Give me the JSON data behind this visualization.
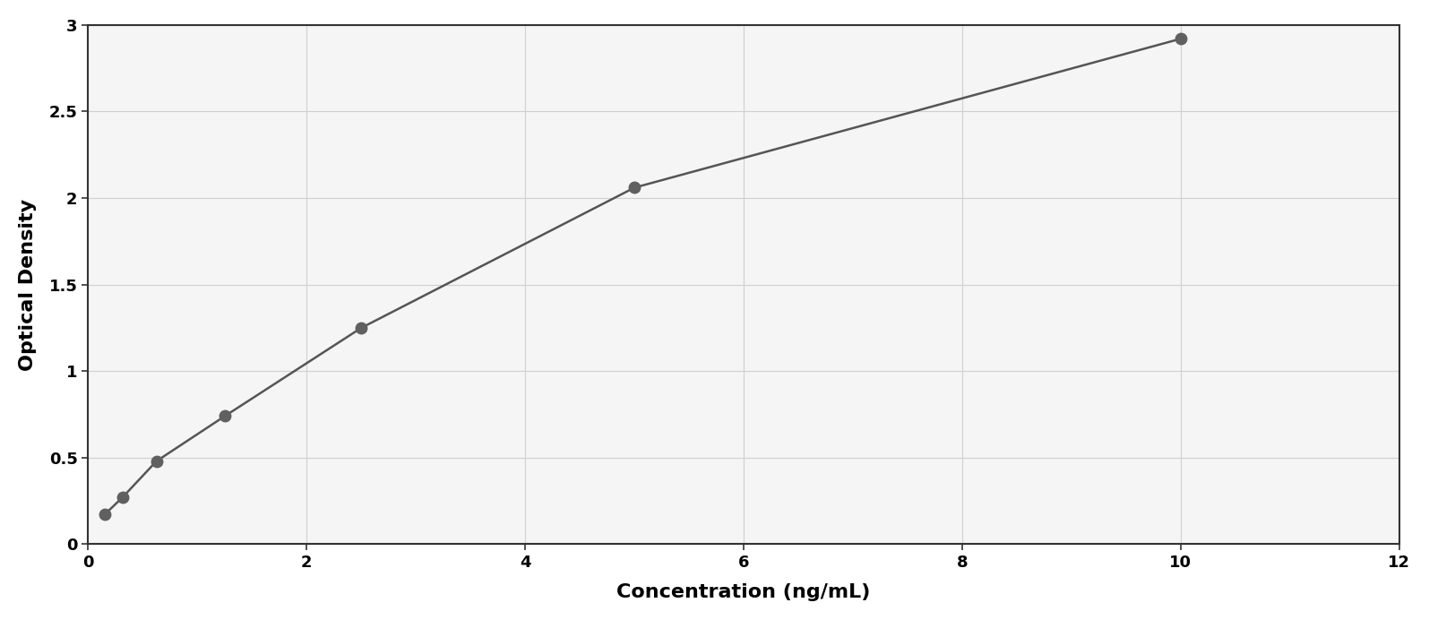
{
  "x_data": [
    0.156,
    0.313,
    0.625,
    1.25,
    2.5,
    5.0,
    10.0
  ],
  "y_data": [
    0.175,
    0.27,
    0.48,
    0.74,
    1.25,
    2.06,
    2.92
  ],
  "xlabel": "Concentration (ng/mL)",
  "ylabel": "Optical Density",
  "xlim": [
    0,
    12
  ],
  "ylim": [
    0,
    3
  ],
  "xticks": [
    0,
    2,
    4,
    6,
    8,
    10,
    12
  ],
  "yticks": [
    0,
    0.5,
    1.0,
    1.5,
    2.0,
    2.5,
    3.0
  ],
  "data_color": "#606060",
  "line_color": "#555555",
  "background_color": "#ffffff",
  "plot_bg_color": "#f5f5f5",
  "grid_color": "#d0d0d0",
  "marker_size": 9,
  "line_width": 1.8,
  "xlabel_fontsize": 16,
  "ylabel_fontsize": 16,
  "tick_fontsize": 13,
  "figure_border_color": "#aaaaaa"
}
